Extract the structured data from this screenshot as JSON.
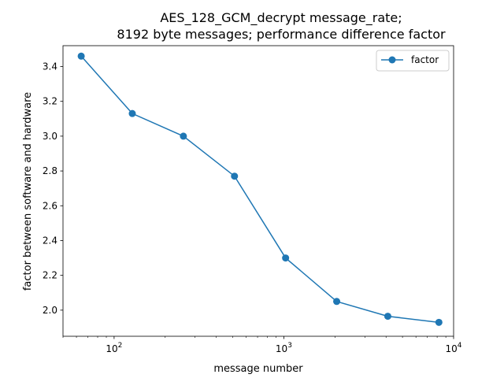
{
  "chart_data": {
    "type": "line",
    "title_line1": "AES_128_GCM_decrypt message_rate;",
    "title_line2": "8192 byte messages; performance difference factor",
    "xlabel": "message number",
    "ylabel": "factor between software and hardware",
    "xscale": "log",
    "xlim": [
      50,
      10000
    ],
    "ylim": [
      1.85,
      3.52
    ],
    "x_ticks": [
      {
        "value": 100,
        "base": "10",
        "exp": "2"
      },
      {
        "value": 1000,
        "base": "10",
        "exp": "3"
      },
      {
        "value": 10000,
        "base": "10",
        "exp": "4"
      }
    ],
    "y_ticks": [
      {
        "value": 2.0,
        "label": "2.0"
      },
      {
        "value": 2.2,
        "label": "2.2"
      },
      {
        "value": 2.4,
        "label": "2.4"
      },
      {
        "value": 2.6,
        "label": "2.6"
      },
      {
        "value": 2.8,
        "label": "2.8"
      },
      {
        "value": 3.0,
        "label": "3.0"
      },
      {
        "value": 3.2,
        "label": "3.2"
      },
      {
        "value": 3.4,
        "label": "3.4"
      }
    ],
    "series": [
      {
        "name": "factor",
        "color": "#1f77b4",
        "x": [
          64,
          128,
          256,
          512,
          1024,
          2048,
          4096,
          8192
        ],
        "y": [
          3.46,
          3.13,
          3.0,
          2.77,
          2.3,
          2.05,
          1.965,
          1.93
        ]
      }
    ],
    "legend_position": "upper right",
    "grid": false
  }
}
